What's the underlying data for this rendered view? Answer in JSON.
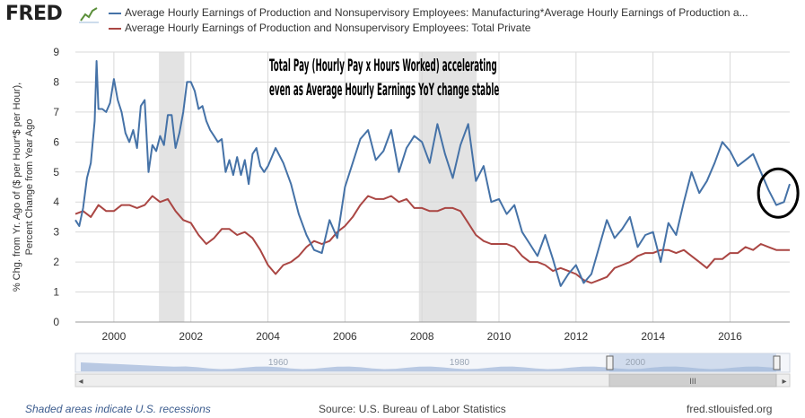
{
  "header": {
    "logo_text": "FRED",
    "logo_icon": "fred-chart-icon"
  },
  "footer": {
    "recession_note": "Shaded areas indicate U.S. recessions",
    "source": "Source: U.S. Bureau of Labor Statistics",
    "site": "fred.stlouisfed.org"
  },
  "navigator": {
    "labels": [
      "1960",
      "1980",
      "2000"
    ],
    "grip_symbol": "III",
    "left_arrow": "◂",
    "right_arrow": "▸"
  },
  "chart_data": {
    "type": "line",
    "title": "",
    "annotation": "Total Pay (Hourly Pay x Hours Worked) accelerating even as Average Hourly Earnings YoY change stable",
    "annotation_lines": [
      "Total Pay (Hourly Pay x Hours Worked) accelerating",
      "even as Average Hourly Earnings YoY change stable"
    ],
    "ylabel_lines": [
      "% Chg. from Yr. Ago of ($ per Hour*$ per Hour),",
      "Percent Change from Year Ago"
    ],
    "xlim": [
      1999.0,
      2017.55
    ],
    "ylim": [
      0,
      9
    ],
    "y_ticks": [
      0,
      1,
      2,
      3,
      4,
      5,
      6,
      7,
      8,
      9
    ],
    "x_ticks": [
      2000,
      2002,
      2004,
      2006,
      2008,
      2010,
      2012,
      2014,
      2016
    ],
    "x_tick_labels": [
      "2000",
      "2002",
      "2004",
      "2006",
      "2008",
      "2010",
      "2012",
      "2014",
      "2016"
    ],
    "recessions": [
      [
        2001.17,
        2001.83
      ],
      [
        2007.92,
        2009.42
      ]
    ],
    "highlight_circle": {
      "x": 2017.25,
      "y": 4.3
    },
    "grid": true,
    "legend_position": "top",
    "series": [
      {
        "name": "Average Hourly Earnings of Production and Nonsupervisory Employees: Manufacturing*Average Hourly Earnings of Production a...",
        "color": "#4572a7",
        "x": [
          1999.0,
          1999.1,
          1999.2,
          1999.3,
          1999.4,
          1999.5,
          1999.55,
          1999.6,
          1999.7,
          1999.8,
          1999.9,
          2000.0,
          2000.1,
          2000.2,
          2000.3,
          2000.4,
          2000.5,
          2000.6,
          2000.7,
          2000.8,
          2000.9,
          2001.0,
          2001.1,
          2001.2,
          2001.3,
          2001.4,
          2001.5,
          2001.6,
          2001.7,
          2001.8,
          2001.9,
          2002.0,
          2002.1,
          2002.2,
          2002.3,
          2002.4,
          2002.5,
          2002.6,
          2002.7,
          2002.8,
          2002.9,
          2003.0,
          2003.1,
          2003.2,
          2003.3,
          2003.4,
          2003.5,
          2003.6,
          2003.7,
          2003.8,
          2003.9,
          2004.0,
          2004.2,
          2004.4,
          2004.6,
          2004.8,
          2005.0,
          2005.2,
          2005.4,
          2005.6,
          2005.8,
          2006.0,
          2006.2,
          2006.4,
          2006.6,
          2006.8,
          2007.0,
          2007.2,
          2007.4,
          2007.6,
          2007.8,
          2008.0,
          2008.2,
          2008.4,
          2008.6,
          2008.8,
          2009.0,
          2009.2,
          2009.4,
          2009.6,
          2009.8,
          2010.0,
          2010.2,
          2010.4,
          2010.6,
          2010.8,
          2011.0,
          2011.2,
          2011.4,
          2011.6,
          2011.8,
          2012.0,
          2012.2,
          2012.4,
          2012.6,
          2012.8,
          2013.0,
          2013.2,
          2013.4,
          2013.6,
          2013.8,
          2014.0,
          2014.2,
          2014.4,
          2014.6,
          2014.8,
          2015.0,
          2015.2,
          2015.4,
          2015.6,
          2015.8,
          2016.0,
          2016.2,
          2016.4,
          2016.6,
          2016.8,
          2017.0,
          2017.2,
          2017.4,
          2017.55
        ],
        "values": [
          3.4,
          3.2,
          3.8,
          4.8,
          5.3,
          6.7,
          8.7,
          7.1,
          7.1,
          7.0,
          7.3,
          8.1,
          7.4,
          7.0,
          6.3,
          6.0,
          6.4,
          5.8,
          7.2,
          7.4,
          5.0,
          5.9,
          5.7,
          6.2,
          5.9,
          6.9,
          6.9,
          5.8,
          6.3,
          7.0,
          8.0,
          8.0,
          7.7,
          7.1,
          7.2,
          6.7,
          6.4,
          6.2,
          6.0,
          6.1,
          5.0,
          5.4,
          4.9,
          5.5,
          4.9,
          5.4,
          4.6,
          5.6,
          5.8,
          5.2,
          5.0,
          5.2,
          5.8,
          5.3,
          4.6,
          3.6,
          2.9,
          2.4,
          2.3,
          3.4,
          2.8,
          4.5,
          5.3,
          6.1,
          6.4,
          5.4,
          5.7,
          6.4,
          5.0,
          5.8,
          6.2,
          6.0,
          5.3,
          6.6,
          5.6,
          4.8,
          5.9,
          6.6,
          4.7,
          5.2,
          4.0,
          4.1,
          3.6,
          3.9,
          3.0,
          2.6,
          2.2,
          2.9,
          2.1,
          1.2,
          1.6,
          1.9,
          1.3,
          1.6,
          2.5,
          3.4,
          2.8,
          3.1,
          3.5,
          2.5,
          2.9,
          3.0,
          2.0,
          3.3,
          2.9,
          4.0,
          5.0,
          4.3,
          4.7,
          5.3,
          6.0,
          5.7,
          5.2,
          5.4,
          5.6,
          5.0,
          4.4,
          3.9,
          4.0,
          4.6
        ]
      },
      {
        "name": "Average Hourly Earnings of Production and Nonsupervisory Employees: Total Private",
        "color": "#aa4643",
        "x": [
          1999.0,
          1999.2,
          1999.4,
          1999.6,
          1999.8,
          2000.0,
          2000.2,
          2000.4,
          2000.6,
          2000.8,
          2001.0,
          2001.2,
          2001.4,
          2001.6,
          2001.8,
          2002.0,
          2002.2,
          2002.4,
          2002.6,
          2002.8,
          2003.0,
          2003.2,
          2003.4,
          2003.6,
          2003.8,
          2004.0,
          2004.2,
          2004.4,
          2004.6,
          2004.8,
          2005.0,
          2005.2,
          2005.4,
          2005.6,
          2005.8,
          2006.0,
          2006.2,
          2006.4,
          2006.6,
          2006.8,
          2007.0,
          2007.2,
          2007.4,
          2007.6,
          2007.8,
          2008.0,
          2008.2,
          2008.4,
          2008.6,
          2008.8,
          2009.0,
          2009.2,
          2009.4,
          2009.6,
          2009.8,
          2010.0,
          2010.2,
          2010.4,
          2010.6,
          2010.8,
          2011.0,
          2011.2,
          2011.4,
          2011.6,
          2011.8,
          2012.0,
          2012.2,
          2012.4,
          2012.6,
          2012.8,
          2013.0,
          2013.2,
          2013.4,
          2013.6,
          2013.8,
          2014.0,
          2014.2,
          2014.4,
          2014.6,
          2014.8,
          2015.0,
          2015.2,
          2015.4,
          2015.6,
          2015.8,
          2016.0,
          2016.2,
          2016.4,
          2016.6,
          2016.8,
          2017.0,
          2017.2,
          2017.4,
          2017.55
        ],
        "values": [
          3.6,
          3.7,
          3.5,
          3.9,
          3.7,
          3.7,
          3.9,
          3.9,
          3.8,
          3.9,
          4.2,
          4.0,
          4.1,
          3.7,
          3.4,
          3.3,
          2.9,
          2.6,
          2.8,
          3.1,
          3.1,
          2.9,
          3.0,
          2.8,
          2.4,
          1.9,
          1.6,
          1.9,
          2.0,
          2.2,
          2.5,
          2.7,
          2.6,
          2.7,
          3.0,
          3.2,
          3.5,
          3.9,
          4.2,
          4.1,
          4.1,
          4.2,
          4.0,
          4.1,
          3.8,
          3.8,
          3.7,
          3.7,
          3.8,
          3.8,
          3.7,
          3.3,
          2.9,
          2.7,
          2.6,
          2.6,
          2.6,
          2.5,
          2.2,
          2.0,
          2.0,
          1.9,
          1.7,
          1.8,
          1.7,
          1.6,
          1.4,
          1.3,
          1.4,
          1.5,
          1.8,
          1.9,
          2.0,
          2.2,
          2.3,
          2.3,
          2.4,
          2.4,
          2.3,
          2.4,
          2.2,
          2.0,
          1.8,
          2.1,
          2.1,
          2.3,
          2.3,
          2.5,
          2.4,
          2.6,
          2.5,
          2.4,
          2.4,
          2.4
        ]
      }
    ]
  }
}
